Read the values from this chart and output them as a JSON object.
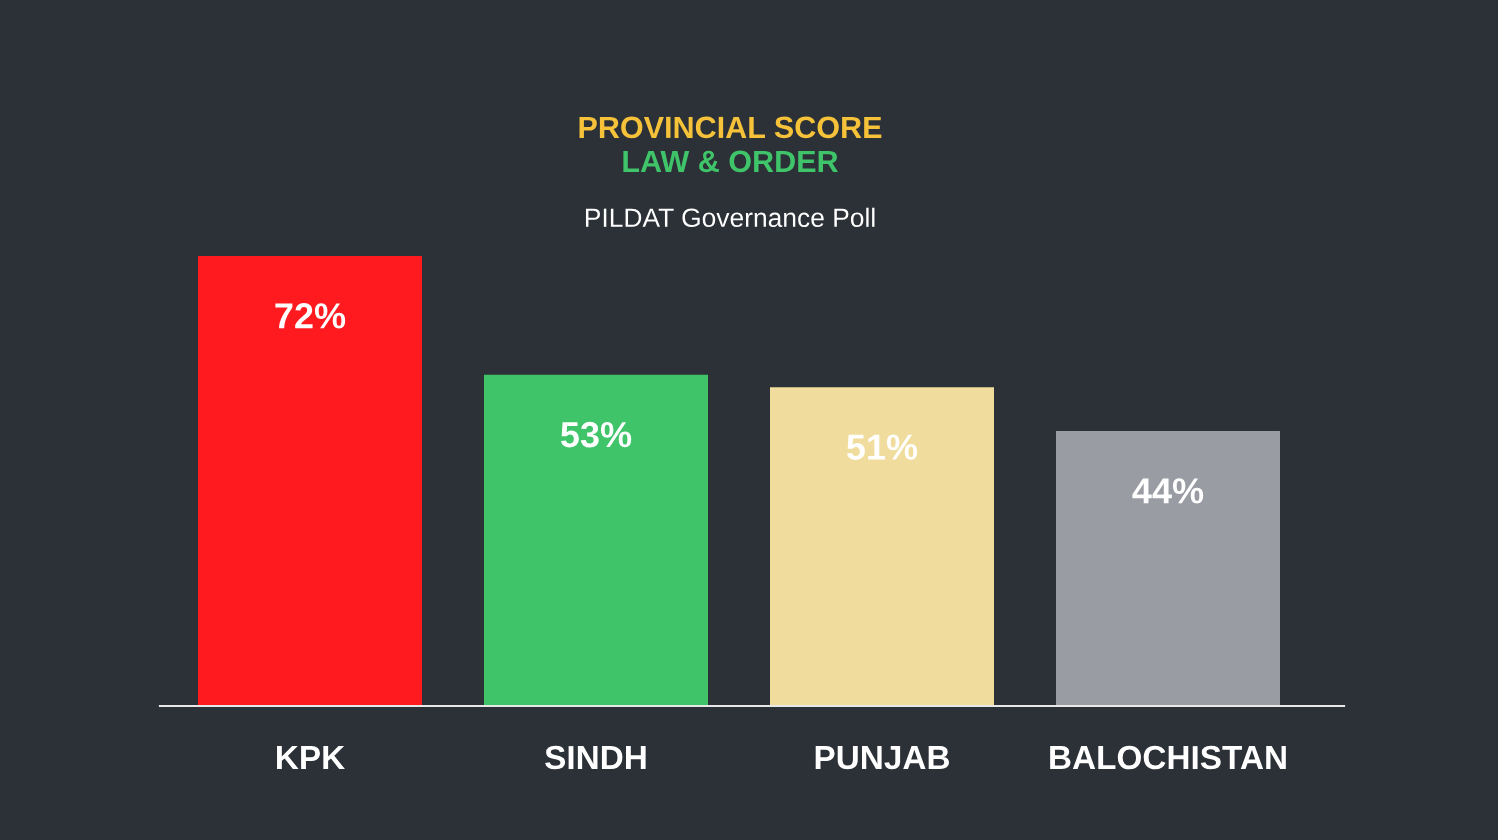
{
  "chart_data": {
    "type": "bar",
    "title": "PROVINCIAL SCORE",
    "subtitle": "LAW & ORDER",
    "annotations": [
      "PILDAT Governance Poll"
    ],
    "categories": [
      "KPK",
      "SINDH",
      "PUNJAB",
      "BALOCHISTAN"
    ],
    "values": [
      72,
      53,
      51,
      44
    ],
    "colors": [
      "#ff1a1f",
      "#3fc46a",
      "#f0dc9c",
      "#9a9ca3"
    ],
    "value_labels": [
      "72%",
      "53%",
      "51%",
      "44%"
    ],
    "grid": false,
    "legend": false
  }
}
